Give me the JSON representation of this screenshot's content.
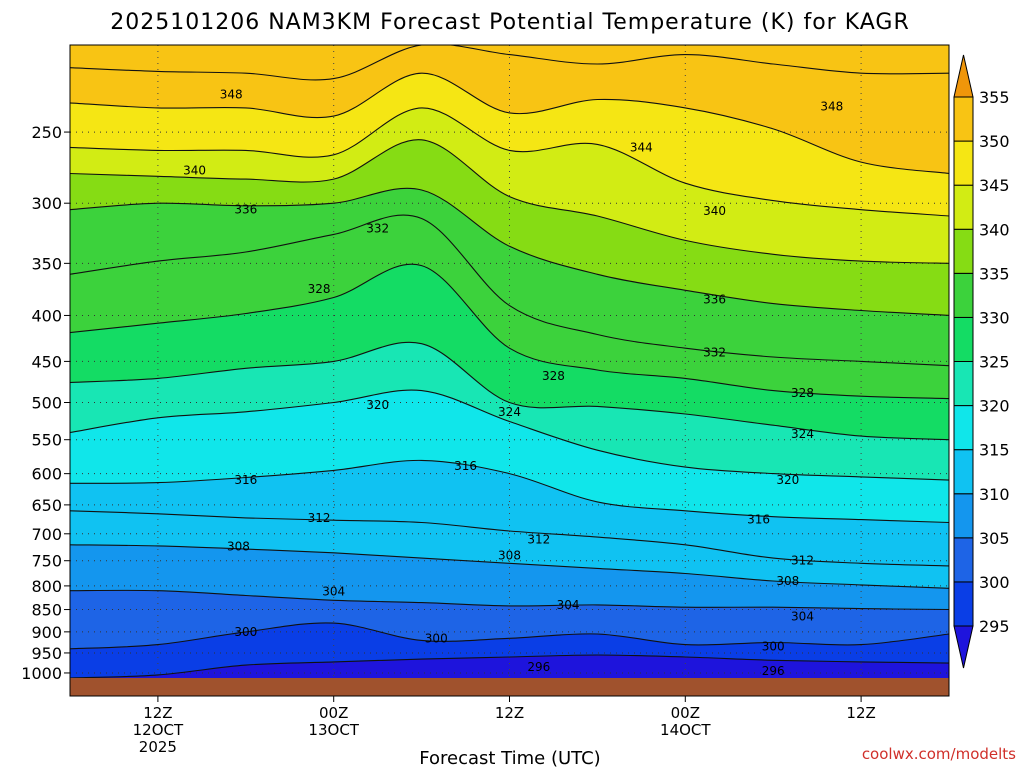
{
  "chart_data": {
    "type": "heatmap",
    "title": "2025101206 NAM3KM Forecast Potential Temperature (K) for KAGR",
    "xlabel": "Forecast Time (UTC)",
    "ylabel": "",
    "credit": "coolwx.com/modelts",
    "x_ticks": [
      {
        "lines": [
          "12Z",
          "12OCT",
          "2025"
        ],
        "hours": 6
      },
      {
        "lines": [
          "00Z",
          "13OCT"
        ],
        "hours": 18
      },
      {
        "lines": [
          "12Z"
        ],
        "hours": 30
      },
      {
        "lines": [
          "00Z",
          "14OCT"
        ],
        "hours": 42
      },
      {
        "lines": [
          "12Z"
        ],
        "hours": 54
      }
    ],
    "x_range_hours": [
      0,
      60
    ],
    "y_ticks": [
      250,
      300,
      350,
      400,
      450,
      500,
      550,
      600,
      650,
      700,
      750,
      800,
      850,
      900,
      950,
      1000
    ],
    "y_range_hpa": [
      200,
      1013
    ],
    "colorbar": {
      "levels": [
        295,
        300,
        305,
        310,
        315,
        320,
        325,
        330,
        335,
        340,
        345,
        350,
        355
      ],
      "colors": [
        "#1e14dc",
        "#0a3ee6",
        "#1e64e6",
        "#1496ee",
        "#10c2f2",
        "#10e6ea",
        "#18e6b4",
        "#14dc64",
        "#3cd23c",
        "#86dc14",
        "#d2ec14",
        "#f5e614",
        "#f8c414",
        "#f0960a"
      ],
      "under_color": "#6b10d2",
      "over_color": "#f0960a"
    },
    "isentropes": [
      {
        "theta": 296,
        "p": [
          1013,
          1005,
          980,
          972,
          965,
          960,
          955,
          960,
          968,
          972,
          975
        ]
      },
      {
        "theta": 300,
        "p": [
          940,
          930,
          900,
          880,
          920,
          915,
          905,
          930,
          925,
          930,
          905
        ]
      },
      {
        "theta": 304,
        "p": [
          810,
          810,
          820,
          830,
          835,
          842,
          840,
          845,
          845,
          848,
          850
        ]
      },
      {
        "theta": 308,
        "p": [
          720,
          722,
          728,
          735,
          745,
          755,
          765,
          775,
          790,
          798,
          805
        ]
      },
      {
        "theta": 312,
        "p": [
          660,
          665,
          672,
          676,
          680,
          695,
          706,
          720,
          745,
          755,
          760
        ]
      },
      {
        "theta": 316,
        "p": [
          615,
          614,
          606,
          595,
          580,
          600,
          645,
          660,
          670,
          675,
          680
        ]
      },
      {
        "theta": 320,
        "p": [
          540,
          520,
          512,
          500,
          485,
          525,
          565,
          590,
          600,
          605,
          610
        ]
      },
      {
        "theta": 324,
        "p": [
          475,
          470,
          458,
          450,
          430,
          500,
          505,
          515,
          530,
          545,
          550
        ]
      },
      {
        "theta": 328,
        "p": [
          418,
          408,
          398,
          382,
          352,
          435,
          460,
          470,
          485,
          492,
          495
        ]
      },
      {
        "theta": 332,
        "p": [
          360,
          348,
          340,
          325,
          312,
          390,
          420,
          435,
          445,
          450,
          455
        ]
      },
      {
        "theta": 336,
        "p": [
          305,
          300,
          302,
          300,
          290,
          335,
          360,
          375,
          388,
          395,
          400
        ]
      },
      {
        "theta": 340,
        "p": [
          278,
          280,
          282,
          282,
          255,
          295,
          310,
          330,
          342,
          348,
          350
        ]
      },
      {
        "theta": 344,
        "p": [
          260,
          262,
          262,
          265,
          235,
          262,
          258,
          285,
          298,
          305,
          310
        ]
      },
      {
        "theta": 348,
        "p": [
          232,
          235,
          235,
          240,
          215,
          238,
          230,
          235,
          248,
          270,
          278
        ]
      },
      {
        "theta": 352,
        "p": [
          212,
          214,
          215,
          218,
          200,
          205,
          210,
          205,
          210,
          215,
          215
        ]
      }
    ],
    "contour_labels": [
      {
        "text": "348",
        "hours": 11,
        "p": 227
      },
      {
        "text": "340",
        "hours": 8.5,
        "p": 276
      },
      {
        "text": "336",
        "hours": 12,
        "p": 305
      },
      {
        "text": "332",
        "hours": 21,
        "p": 320
      },
      {
        "text": "328",
        "hours": 17,
        "p": 374
      },
      {
        "text": "320",
        "hours": 21,
        "p": 503
      },
      {
        "text": "316",
        "hours": 12,
        "p": 610
      },
      {
        "text": "312",
        "hours": 17,
        "p": 672
      },
      {
        "text": "308",
        "hours": 11.5,
        "p": 723
      },
      {
        "text": "304",
        "hours": 18,
        "p": 812
      },
      {
        "text": "300",
        "hours": 12,
        "p": 900
      },
      {
        "text": "344",
        "hours": 39,
        "p": 260
      },
      {
        "text": "348",
        "hours": 52,
        "p": 234
      },
      {
        "text": "340",
        "hours": 44,
        "p": 306
      },
      {
        "text": "336",
        "hours": 44,
        "p": 384
      },
      {
        "text": "332",
        "hours": 44,
        "p": 440
      },
      {
        "text": "328",
        "hours": 33,
        "p": 467
      },
      {
        "text": "324",
        "hours": 30,
        "p": 512
      },
      {
        "text": "316",
        "hours": 27,
        "p": 588
      },
      {
        "text": "328",
        "hours": 50,
        "p": 488
      },
      {
        "text": "324",
        "hours": 50,
        "p": 542
      },
      {
        "text": "320",
        "hours": 49,
        "p": 610
      },
      {
        "text": "316",
        "hours": 47,
        "p": 675
      },
      {
        "text": "312",
        "hours": 32,
        "p": 710
      },
      {
        "text": "312",
        "hours": 50,
        "p": 750
      },
      {
        "text": "308",
        "hours": 30,
        "p": 740
      },
      {
        "text": "308",
        "hours": 49,
        "p": 790
      },
      {
        "text": "304",
        "hours": 34,
        "p": 840
      },
      {
        "text": "304",
        "hours": 50,
        "p": 865
      },
      {
        "text": "300",
        "hours": 25,
        "p": 915
      },
      {
        "text": "300",
        "hours": 48,
        "p": 935
      },
      {
        "text": "296",
        "hours": 32,
        "p": 985
      },
      {
        "text": "296",
        "hours": 48,
        "p": 995
      }
    ]
  }
}
